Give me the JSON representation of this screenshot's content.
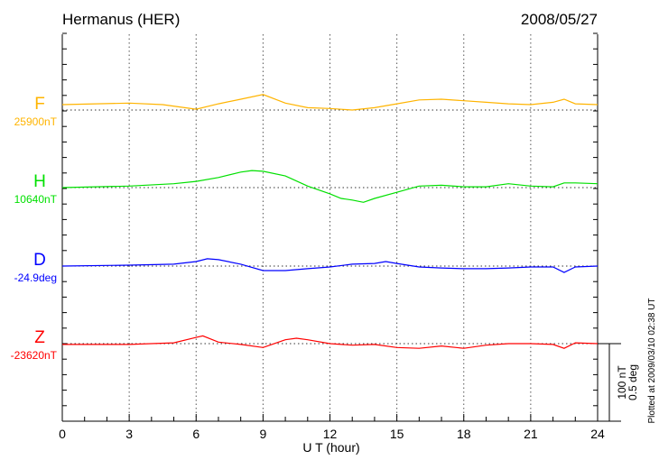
{
  "chart_data": {
    "type": "line",
    "title": "Hermanus (HER)",
    "date": "2008/05/27",
    "xlabel": "U T (hour)",
    "xlim": [
      0,
      24
    ],
    "xticks": [
      "0",
      "3",
      "6",
      "9",
      "12",
      "15",
      "18",
      "21",
      "24"
    ],
    "grid": true,
    "scale_bar": [
      "100 nT",
      "0.5 deg"
    ],
    "scale_nT": 100,
    "scale_deg": 0.5,
    "footer": "Plotted at 2009/03/10 02:38 UT",
    "series": [
      {
        "name": "F",
        "baseline_label": "25900nT",
        "unit": "nT",
        "color": "#ffb400",
        "x": [
          0,
          3,
          4.5,
          6,
          7,
          8,
          9,
          10,
          11,
          12,
          13,
          14,
          15,
          16,
          17,
          18,
          19,
          20,
          21,
          22,
          22.5,
          23,
          24
        ],
        "y": [
          7,
          9,
          7,
          1,
          8,
          14,
          20,
          9,
          3,
          2,
          0,
          3,
          8,
          13,
          14,
          12,
          10,
          8,
          7,
          10,
          14,
          8,
          7
        ]
      },
      {
        "name": "H",
        "baseline_label": "10640nT",
        "unit": "nT",
        "color": "#00e000",
        "x": [
          0,
          3,
          5,
          6,
          7,
          8,
          8.5,
          9,
          10,
          11,
          12,
          12.5,
          13,
          13.5,
          14,
          15,
          16,
          17,
          18,
          19,
          20,
          21,
          22,
          22.5,
          23,
          24
        ],
        "y": [
          0,
          2,
          5,
          8,
          13,
          20,
          22,
          21,
          15,
          2,
          -8,
          -14,
          -16,
          -19,
          -14,
          -6,
          2,
          3,
          1,
          1,
          5,
          2,
          1,
          6,
          6,
          5
        ]
      },
      {
        "name": "D",
        "baseline_label": "-24.9deg",
        "unit": "deg",
        "color": "#0000ff",
        "x": [
          0,
          3,
          5,
          6,
          6.5,
          7,
          8,
          9,
          10,
          11,
          12,
          13,
          14,
          14.5,
          15,
          16,
          17,
          18,
          19,
          20,
          21,
          22,
          22.5,
          23,
          24
        ],
        "y": [
          0,
          0.006,
          0.012,
          0.029,
          0.047,
          0.041,
          0.012,
          -0.029,
          -0.029,
          -0.017,
          -0.006,
          0.012,
          0.017,
          0.029,
          0.017,
          -0.006,
          -0.012,
          -0.017,
          -0.017,
          -0.012,
          -0.006,
          -0.006,
          -0.041,
          -0.006,
          0
        ]
      },
      {
        "name": "Z",
        "baseline_label": "-23620nT",
        "unit": "nT",
        "color": "#ff0000",
        "x": [
          0,
          3,
          5,
          6,
          6.3,
          7,
          8,
          9,
          10,
          10.5,
          11,
          12,
          13,
          14,
          15,
          16,
          17,
          18,
          19,
          20,
          21,
          22,
          22.5,
          23,
          24
        ],
        "y": [
          -1,
          -1,
          1,
          8,
          10,
          2,
          -1,
          -5,
          5,
          7,
          5,
          0,
          -2,
          -1,
          -5,
          -6,
          -3,
          -6,
          -2,
          0,
          0,
          -1,
          -6,
          1,
          0
        ]
      }
    ]
  }
}
